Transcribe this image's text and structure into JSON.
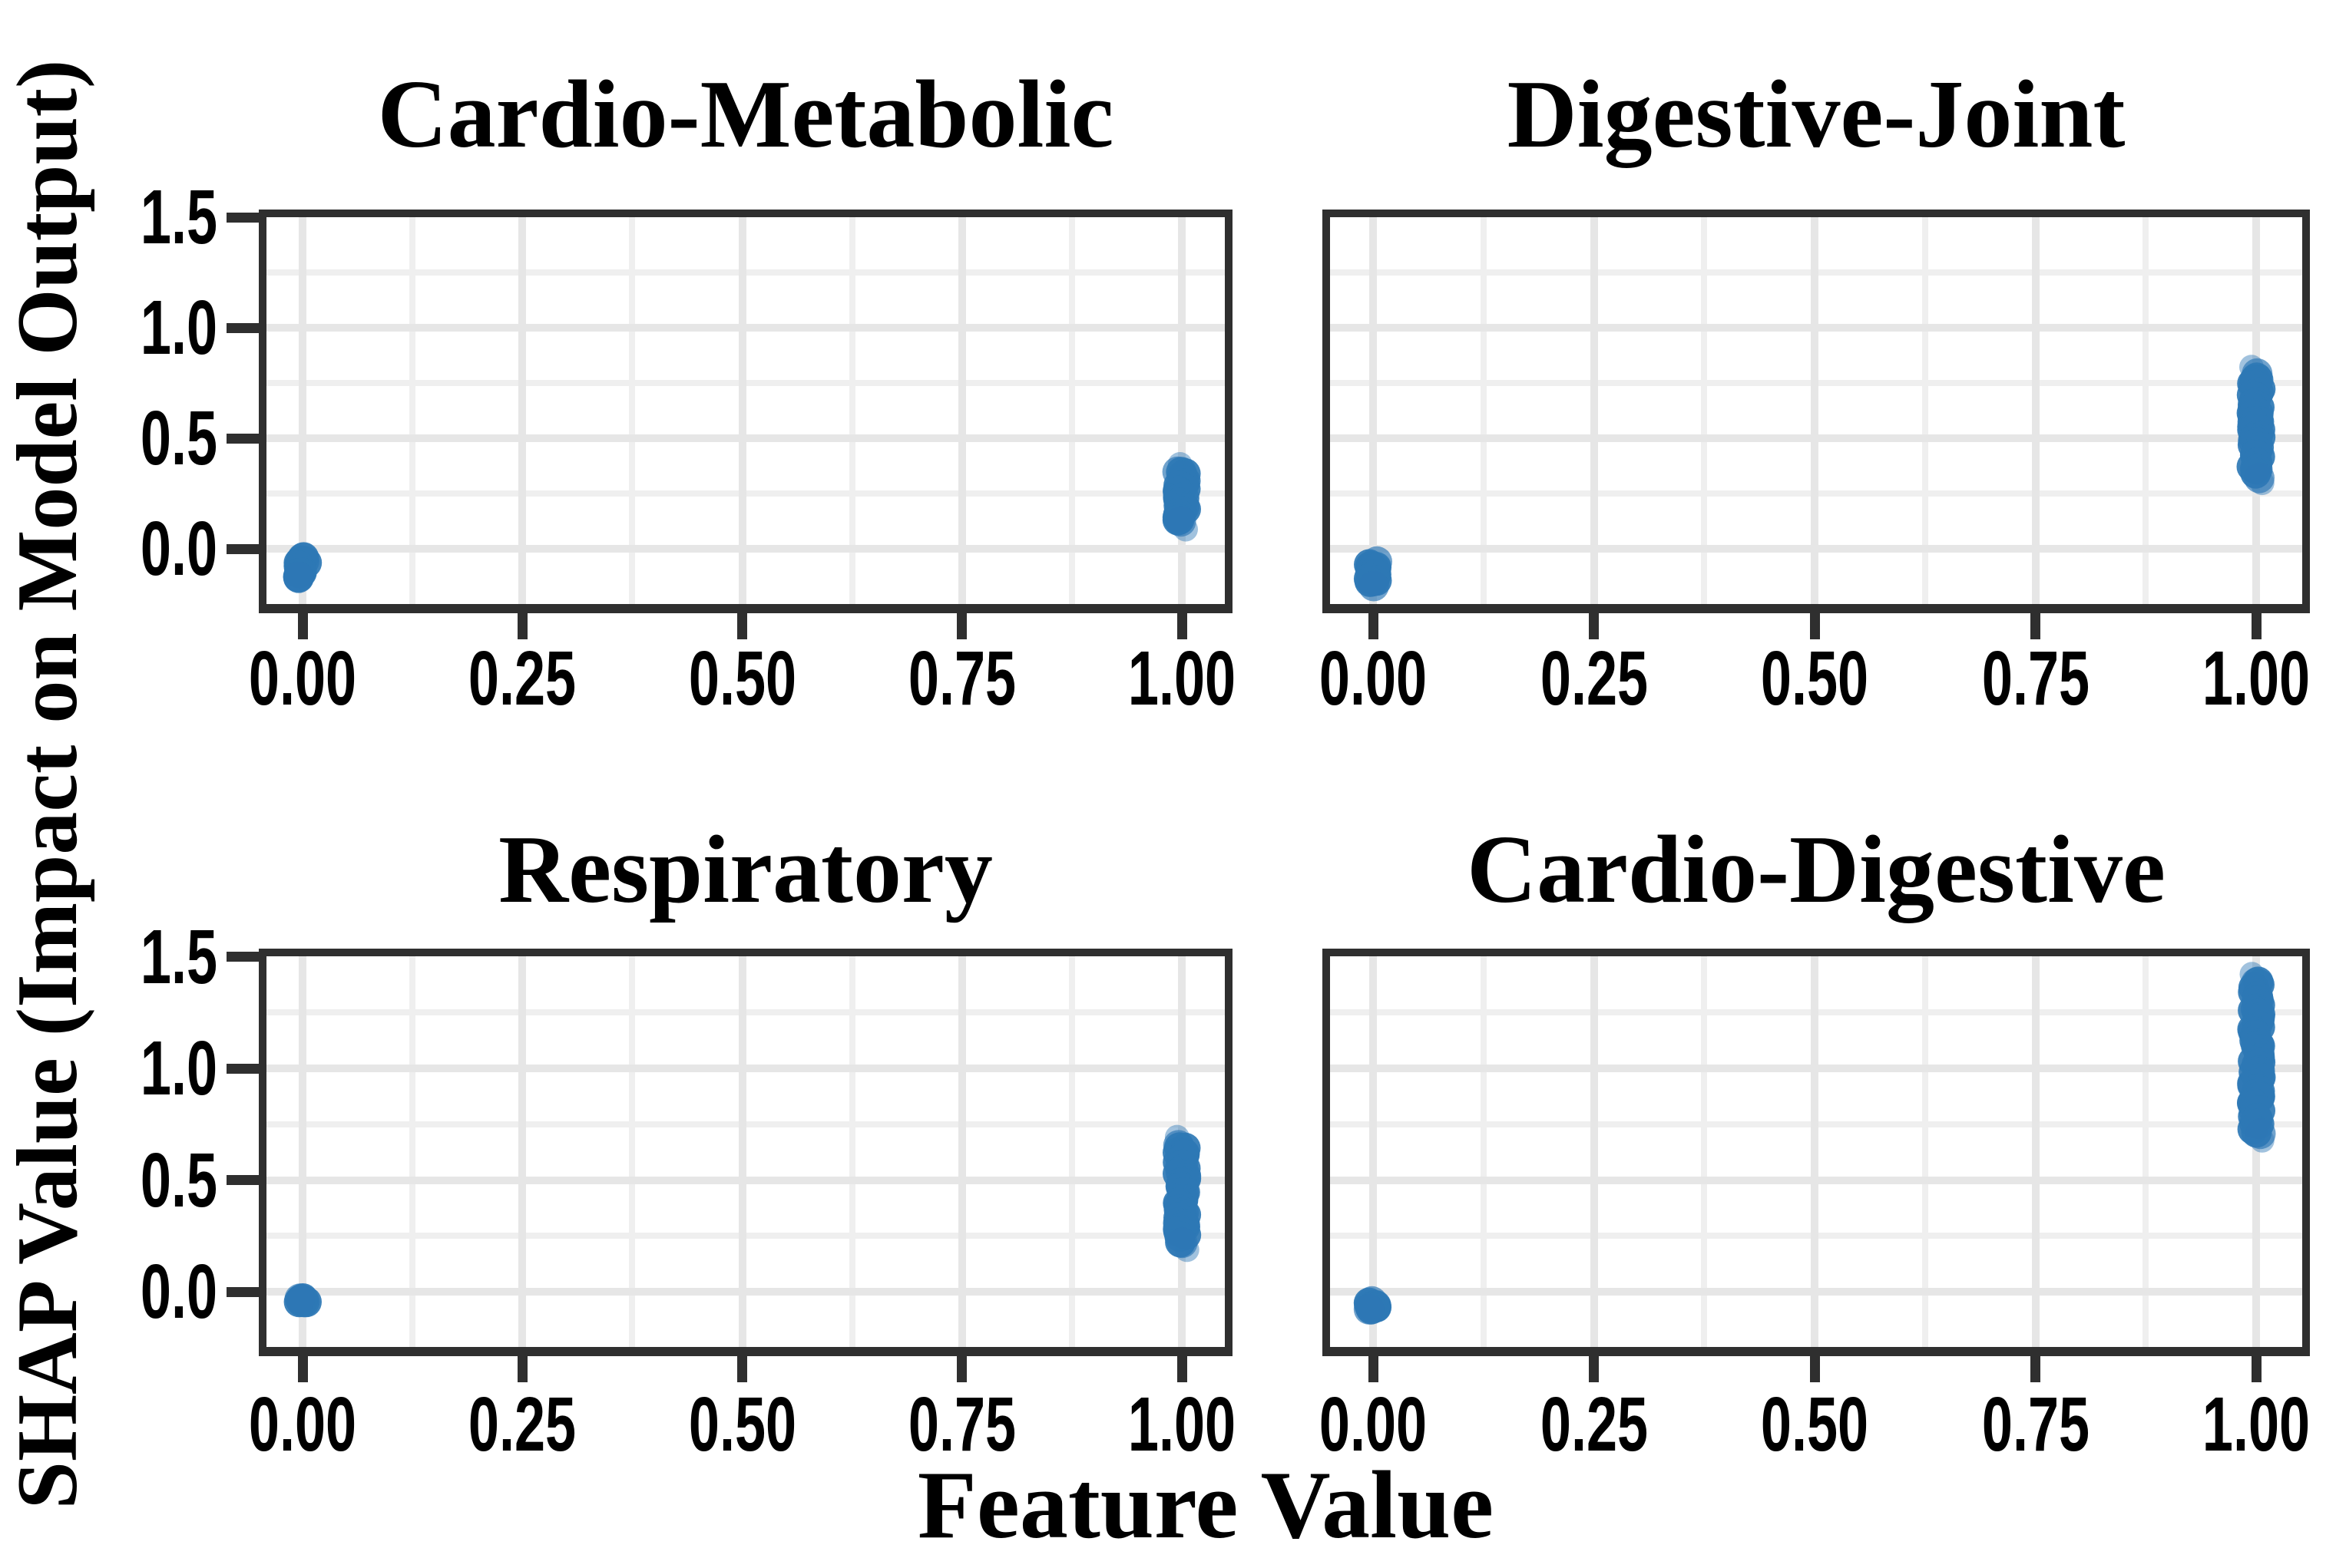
{
  "figure": {
    "ylabel": "SHAP Value (Impact on Model Output)",
    "xlabel": "Feature Value",
    "dot_color": "#2e78b5",
    "dot_fringe_color": "#7fa8cd",
    "spine_color": "#2f2f2f",
    "grid_major_color": "#e6e6e6",
    "grid_minor_color": "#efefef",
    "text_color": "#000000"
  },
  "chart_data": [
    {
      "type": "scatter",
      "title": "Cardio-Metabolic",
      "x_tick_labels": [
        "0.00",
        "0.25",
        "0.50",
        "0.75",
        "1.00"
      ],
      "x_tick_values": [
        0,
        0.25,
        0.5,
        0.75,
        1
      ],
      "y_tick_labels": [
        "1.5",
        "1.0",
        "0.5",
        "0.0"
      ],
      "y_tick_values": [
        1.5,
        1.0,
        0.5,
        0.0
      ],
      "show_y_tick_labels": true,
      "xlim": [
        -0.04,
        1.05
      ],
      "ylim": [
        -0.25,
        1.5
      ],
      "grid": "major+minor",
      "clusters": [
        {
          "x": 0,
          "y_min": -0.2,
          "y_max": 0.03,
          "n": 16
        },
        {
          "x": 1,
          "y_min": 0.05,
          "y_max": 0.42,
          "n": 26
        }
      ]
    },
    {
      "type": "scatter",
      "title": "Digestive-Joint",
      "x_tick_labels": [
        "0.00",
        "0.25",
        "0.50",
        "0.75",
        "1.00"
      ],
      "x_tick_values": [
        0,
        0.25,
        0.5,
        0.75,
        1
      ],
      "y_tick_labels": [
        "1.5",
        "1.0",
        "0.5",
        "0.0"
      ],
      "y_tick_values": [
        1.5,
        1.0,
        0.5,
        0.0
      ],
      "show_y_tick_labels": false,
      "xlim": [
        -0.04,
        1.05
      ],
      "ylim": [
        -0.25,
        1.5
      ],
      "grid": "major+minor",
      "clusters": [
        {
          "x": 0,
          "y_min": -0.23,
          "y_max": 0.01,
          "n": 17
        },
        {
          "x": 1,
          "y_min": 0.26,
          "y_max": 0.86,
          "n": 42
        }
      ]
    },
    {
      "type": "scatter",
      "title": "Respiratory",
      "x_tick_labels": [
        "0.00",
        "0.25",
        "0.50",
        "0.75",
        "1.00"
      ],
      "x_tick_values": [
        0,
        0.25,
        0.5,
        0.75,
        1
      ],
      "y_tick_labels": [
        "1.5",
        "1.0",
        "0.5",
        "0.0"
      ],
      "y_tick_values": [
        1.5,
        1.0,
        0.5,
        0.0
      ],
      "show_y_tick_labels": true,
      "xlim": [
        -0.04,
        1.05
      ],
      "ylim": [
        -0.25,
        1.5
      ],
      "grid": "major+minor",
      "clusters": [
        {
          "x": 0,
          "y_min": -0.1,
          "y_max": 0.03,
          "n": 10
        },
        {
          "x": 1,
          "y_min": 0.15,
          "y_max": 0.73,
          "n": 41
        }
      ]
    },
    {
      "type": "scatter",
      "title": "Cardio-Digestive",
      "x_tick_labels": [
        "0.00",
        "0.25",
        "0.50",
        "0.75",
        "1.00"
      ],
      "x_tick_values": [
        0,
        0.25,
        0.5,
        0.75,
        1
      ],
      "y_tick_labels": [
        "1.5",
        "1.0",
        "0.5",
        "0.0"
      ],
      "y_tick_values": [
        1.5,
        1.0,
        0.5,
        0.0
      ],
      "show_y_tick_labels": false,
      "xlim": [
        -0.04,
        1.05
      ],
      "ylim": [
        -0.25,
        1.5
      ],
      "grid": "major+minor",
      "clusters": [
        {
          "x": 0,
          "y_min": -0.15,
          "y_max": 0.02,
          "n": 12
        },
        {
          "x": 1,
          "y_min": 0.64,
          "y_max": 1.46,
          "n": 58
        }
      ]
    }
  ]
}
